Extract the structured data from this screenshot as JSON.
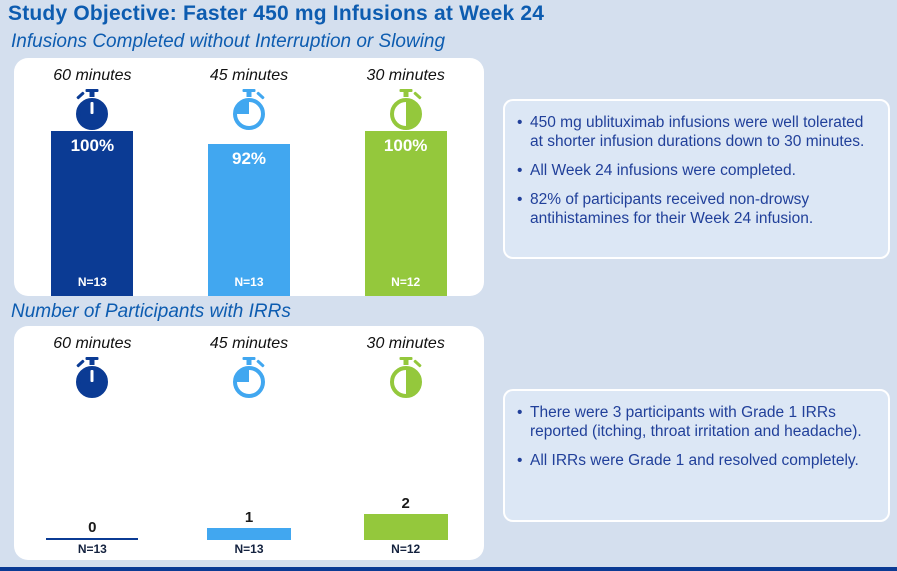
{
  "page": {
    "title": "Study Objective: Faster 450 mg Infusions at Week 24",
    "section1_title": "Infusions Completed without Interruption or Slowing",
    "section2_title": "Number of Participants with IRRs"
  },
  "colors": {
    "background": "#d4dfee",
    "panel": "#ffffff",
    "navy": "#0b3b94",
    "light_blue": "#41a7f0",
    "green": "#94c83c",
    "heading_blue": "#0d5cb0",
    "bullet_text": "#21409a",
    "note_bg": "#dce7f5"
  },
  "chart_data": [
    {
      "type": "bar",
      "title": "Infusions Completed without Interruption or Slowing",
      "categories": [
        "60 minutes",
        "45 minutes",
        "30 minutes"
      ],
      "values": [
        100,
        92,
        100
      ],
      "unit": "%",
      "bar_labels": [
        "100%",
        "92%",
        "100%"
      ],
      "n_labels": [
        "N=13",
        "N=13",
        "N=12"
      ],
      "bar_colors": [
        "#0b3b94",
        "#41a7f0",
        "#94c83c"
      ],
      "ylim": [
        0,
        100
      ],
      "grid": false,
      "legend": "none"
    },
    {
      "type": "bar",
      "title": "Number of Participants with IRRs",
      "categories": [
        "60 minutes",
        "45 minutes",
        "30 minutes"
      ],
      "values": [
        0,
        1,
        2
      ],
      "bar_labels": [
        "0",
        "1",
        "2"
      ],
      "n_labels": [
        "N=13",
        "N=13",
        "N=12"
      ],
      "bar_colors": [
        "#0b3b94",
        "#41a7f0",
        "#94c83c"
      ],
      "grid": false,
      "legend": "none"
    }
  ],
  "panel1": {
    "columns": [
      {
        "label": "60 minutes",
        "icon": "stopwatch-60-icon",
        "pct": "100%",
        "n": "N=13"
      },
      {
        "label": "45 minutes",
        "icon": "stopwatch-45-icon",
        "pct": "92%",
        "n": "N=13"
      },
      {
        "label": "30 minutes",
        "icon": "stopwatch-30-icon",
        "pct": "100%",
        "n": "N=12"
      }
    ]
  },
  "panel2": {
    "columns": [
      {
        "label": "60 minutes",
        "icon": "stopwatch-60-icon",
        "count": "0",
        "n": "N=13"
      },
      {
        "label": "45 minutes",
        "icon": "stopwatch-45-icon",
        "count": "1",
        "n": "N=13"
      },
      {
        "label": "30 minutes",
        "icon": "stopwatch-30-icon",
        "count": "2",
        "n": "N=12"
      }
    ]
  },
  "note1": {
    "bullets": [
      "450 mg ublituximab infusions were well tolerated at shorter infusion durations down to 30 minutes.",
      "All Week 24 infusions were completed.",
      "82% of participants received non-drowsy antihistamines for their Week 24 infusion."
    ]
  },
  "note2": {
    "bullets": [
      "There were 3 participants with Grade 1 IRRs reported (itching, throat irritation and headache).",
      "All IRRs were Grade 1 and resolved completely."
    ]
  }
}
